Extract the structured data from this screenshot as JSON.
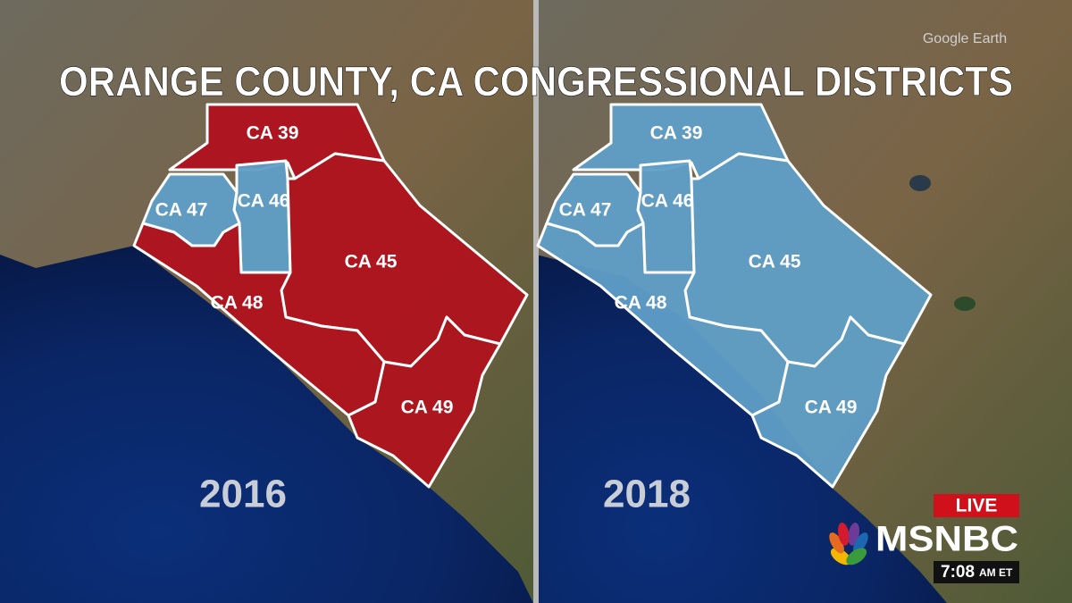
{
  "title": "ORANGE COUNTY, CA CONGRESSIONAL DISTRICTS",
  "watermark": "Google Earth",
  "panels": [
    {
      "year": "2016",
      "districts": [
        {
          "label": "CA 39",
          "color": "#b0121e"
        },
        {
          "label": "CA 46",
          "color": "#5f9ec7"
        },
        {
          "label": "CA 47",
          "color": "#5f9ec7"
        },
        {
          "label": "CA 45",
          "color": "#b0121e"
        },
        {
          "label": "CA 48",
          "color": "#b0121e"
        },
        {
          "label": "CA 49",
          "color": "#b0121e"
        }
      ]
    },
    {
      "year": "2018",
      "districts": [
        {
          "label": "CA 39",
          "color": "#5f9ec7"
        },
        {
          "label": "CA 46",
          "color": "#5f9ec7"
        },
        {
          "label": "CA 47",
          "color": "#5f9ec7"
        },
        {
          "label": "CA 45",
          "color": "#5f9ec7"
        },
        {
          "label": "CA 48",
          "color": "#5f9ec7"
        },
        {
          "label": "CA 49",
          "color": "#5f9ec7"
        }
      ]
    }
  ],
  "broadcast": {
    "live": "LIVE",
    "network": "MSNBC",
    "time": "7:08",
    "time_suffix": "AM ET"
  }
}
